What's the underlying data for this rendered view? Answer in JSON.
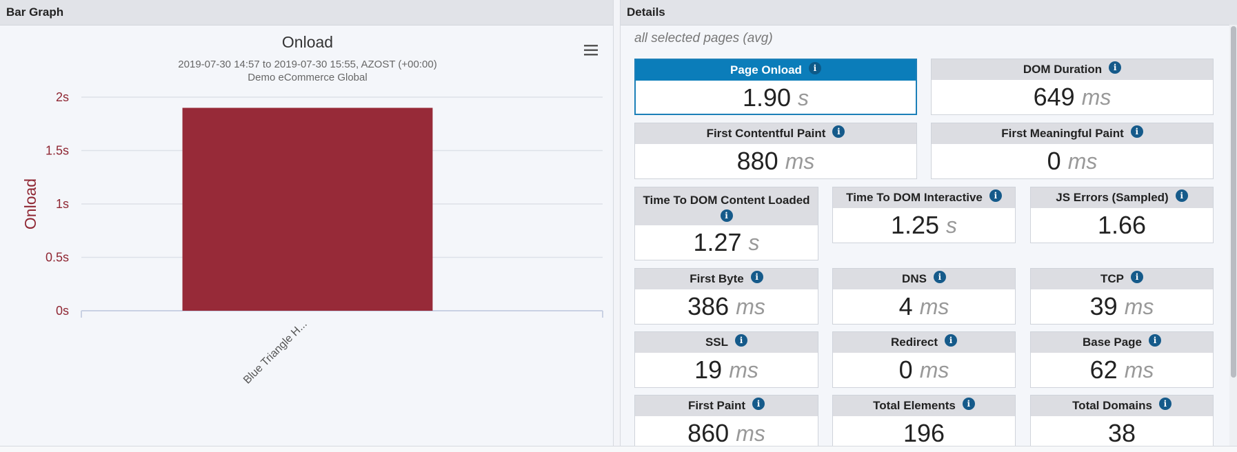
{
  "left_panel": {
    "title": "Bar Graph",
    "menu_icon": "hamburger-menu-icon"
  },
  "chart_data": {
    "type": "bar",
    "title": "Onload",
    "subtitle": "2019-07-30 14:57 to 2019-07-30 15:55, AZOST (+00:00)",
    "subtitle2": "Demo eCommerce Global",
    "ylabel": "Onload",
    "xlabel": "",
    "categories": [
      "Blue Triangle H..."
    ],
    "values": [
      1.9
    ],
    "ylim": [
      0,
      2
    ],
    "yticks": [
      {
        "value": 0,
        "label": "0s"
      },
      {
        "value": 0.5,
        "label": "0.5s"
      },
      {
        "value": 1,
        "label": "1s"
      },
      {
        "value": 1.5,
        "label": "1.5s"
      },
      {
        "value": 2,
        "label": "2s"
      }
    ],
    "grid": true,
    "bar_color": "#972a38",
    "axis_label_color": "#8f2733"
  },
  "right_panel": {
    "title": "Details",
    "subtitle": "all selected pages (avg)",
    "info_icon": "info-icon",
    "active_color": "#0b7dba",
    "metrics": [
      {
        "label": "Page Onload",
        "value": "1.90",
        "unit": "s",
        "active": true
      },
      {
        "label": "DOM Duration",
        "value": "649",
        "unit": "ms"
      },
      {
        "label": "First Contentful Paint",
        "value": "880",
        "unit": "ms"
      },
      {
        "label": "First Meaningful Paint",
        "value": "0",
        "unit": "ms"
      },
      {
        "label": "Time To DOM Content Loaded",
        "value": "1.27",
        "unit": "s"
      },
      {
        "label": "Time To DOM Interactive",
        "value": "1.25",
        "unit": "s"
      },
      {
        "label": "JS Errors (Sampled)",
        "value": "1.66",
        "unit": ""
      },
      {
        "label": "First Byte",
        "value": "386",
        "unit": "ms"
      },
      {
        "label": "DNS",
        "value": "4",
        "unit": "ms"
      },
      {
        "label": "TCP",
        "value": "39",
        "unit": "ms"
      },
      {
        "label": "SSL",
        "value": "19",
        "unit": "ms"
      },
      {
        "label": "Redirect",
        "value": "0",
        "unit": "ms"
      },
      {
        "label": "Base Page",
        "value": "62",
        "unit": "ms"
      },
      {
        "label": "First Paint",
        "value": "860",
        "unit": "ms"
      },
      {
        "label": "Total Elements",
        "value": "196",
        "unit": ""
      },
      {
        "label": "Total Domains",
        "value": "38",
        "unit": ""
      }
    ]
  }
}
